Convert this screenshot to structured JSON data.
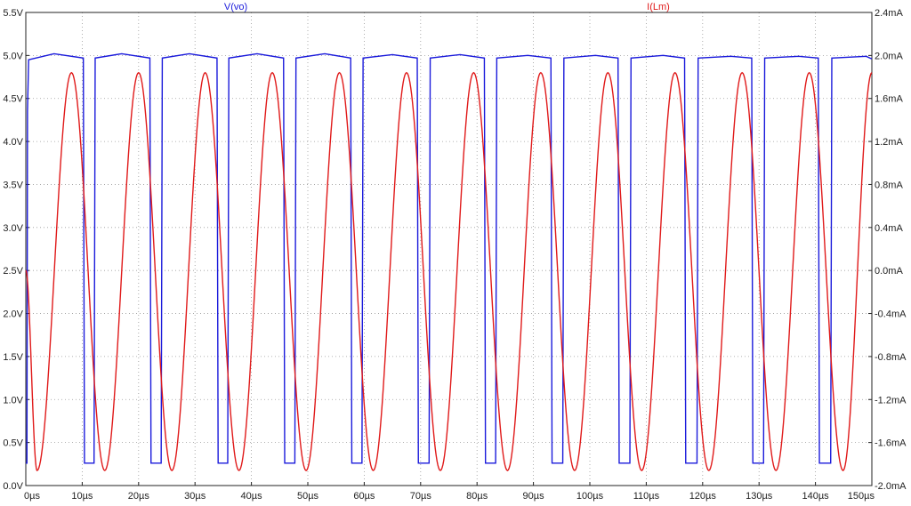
{
  "chart_data": {
    "type": "line",
    "title": "",
    "xlabel": "",
    "ylabel": "",
    "y2label": "",
    "grid": true,
    "xlim": [
      0,
      150
    ],
    "ylim": [
      0,
      5.5
    ],
    "y2lim": [
      -2.0,
      2.4
    ],
    "x_ticks": [
      "0µs",
      "10µs",
      "20µs",
      "30µs",
      "40µs",
      "50µs",
      "60µs",
      "70µs",
      "80µs",
      "90µs",
      "100µs",
      "110µs",
      "120µs",
      "130µs",
      "140µs",
      "150µs"
    ],
    "y_ticks": [
      "0.0V",
      "0.5V",
      "1.0V",
      "1.5V",
      "2.0V",
      "2.5V",
      "3.0V",
      "3.5V",
      "4.0V",
      "4.5V",
      "5.0V",
      "5.5V"
    ],
    "y2_ticks": [
      "-2.0mA",
      "-1.6mA",
      "-1.2mA",
      "-0.8mA",
      "-0.4mA",
      "0.0mA",
      "0.4mA",
      "0.8mA",
      "1.2mA",
      "1.6mA",
      "2.0mA",
      "2.4mA"
    ],
    "series": [
      {
        "name": "V(vo)",
        "axis": "left",
        "color": "#1a1adb",
        "x": [
          0,
          0.2,
          0.3,
          0.5,
          5,
          10.2,
          10.4,
          12.1,
          12.3,
          17,
          22.0,
          22.2,
          24.0,
          24.2,
          29,
          33.9,
          34.1,
          35.8,
          36.0,
          41,
          45.7,
          45.9,
          47.7,
          47.9,
          53,
          57.6,
          57.8,
          59.6,
          59.8,
          65,
          69.4,
          69.6,
          71.5,
          71.7,
          77,
          81.3,
          81.5,
          83.3,
          83.5,
          89,
          93.1,
          93.3,
          95.2,
          95.4,
          101,
          105.0,
          105.2,
          107.1,
          107.3,
          113,
          116.8,
          117.0,
          119.0,
          119.2,
          125,
          128.7,
          128.9,
          130.8,
          131.0,
          137,
          140.5,
          140.7,
          142.7,
          142.9,
          149,
          150
        ],
        "y": [
          0.26,
          0.26,
          4.35,
          4.95,
          5.02,
          4.97,
          0.26,
          0.26,
          4.97,
          5.02,
          4.97,
          0.26,
          0.26,
          4.97,
          5.02,
          4.97,
          0.26,
          0.26,
          4.97,
          5.02,
          4.97,
          0.26,
          0.26,
          4.97,
          5.02,
          4.97,
          0.26,
          0.26,
          4.97,
          5.01,
          4.97,
          0.26,
          0.26,
          4.97,
          5.01,
          4.97,
          0.26,
          0.26,
          4.97,
          5.0,
          4.97,
          0.26,
          0.26,
          4.97,
          5.0,
          4.97,
          0.26,
          0.26,
          4.97,
          5.0,
          4.97,
          0.26,
          0.26,
          4.97,
          4.99,
          4.97,
          0.26,
          0.26,
          4.97,
          4.99,
          4.97,
          0.26,
          0.26,
          4.97,
          4.99,
          4.96
        ]
      },
      {
        "name": "I(Lm)",
        "axis": "right",
        "color": "#e01a1a",
        "x": [
          0,
          2.0,
          8.1,
          14.0,
          20.0,
          25.9,
          31.8,
          37.8,
          43.7,
          49.7,
          55.6,
          61.6,
          67.5,
          73.5,
          79.4,
          85.4,
          91.3,
          97.3,
          103.2,
          109.2,
          115.1,
          121.1,
          127.0,
          133.0,
          138.9,
          144.9,
          150
        ],
        "y": [
          0.0,
          -1.86,
          1.84,
          -1.86,
          1.84,
          -1.86,
          1.84,
          -1.86,
          1.84,
          -1.86,
          1.84,
          -1.86,
          1.84,
          -1.86,
          1.84,
          -1.86,
          1.84,
          -1.86,
          1.84,
          -1.86,
          1.84,
          -1.86,
          1.84,
          -1.86,
          1.84,
          -1.86,
          1.84
        ]
      }
    ]
  }
}
